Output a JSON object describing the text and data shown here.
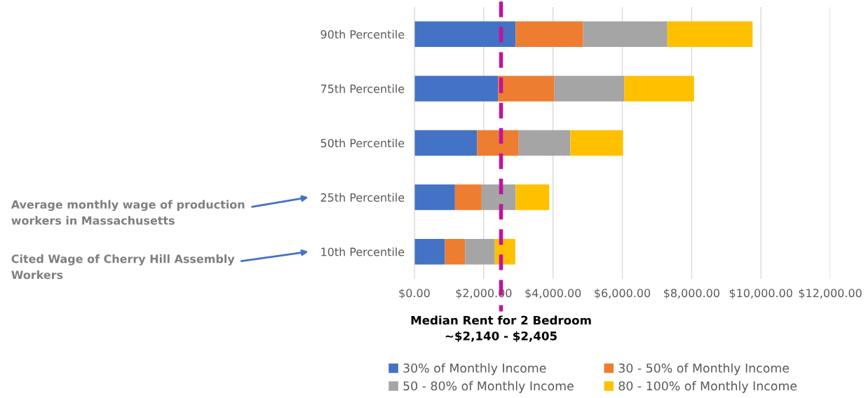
{
  "chart_data": {
    "type": "bar",
    "orientation": "horizontal",
    "stacked": true,
    "categories": [
      "90th Percentile",
      "75th Percentile",
      "50th Percentile",
      "25th Percentile",
      "10th Percentile"
    ],
    "series": [
      {
        "name": "30% of Monthly Income",
        "color": "#4472c4",
        "values": [
          2920,
          2410,
          1810,
          1170,
          880
        ]
      },
      {
        "name": "30 - 50% of Monthly Income",
        "color": "#ed7d31",
        "values": [
          1950,
          1630,
          1200,
          770,
          580
        ]
      },
      {
        "name": "50 - 80% of Monthly Income",
        "color": "#a5a5a5",
        "values": [
          2430,
          2020,
          1490,
          980,
          860
        ]
      },
      {
        "name": "80 - 100% of Monthly Income",
        "color": "#ffc000",
        "values": [
          2460,
          2010,
          1520,
          970,
          590
        ]
      }
    ],
    "xlim": [
      0,
      12000
    ],
    "xticks": [
      {
        "value": 0,
        "label": "$0.00"
      },
      {
        "value": 2000,
        "label": "$2,000.00"
      },
      {
        "value": 4000,
        "label": "$4,000.00"
      },
      {
        "value": 6000,
        "label": "$6,000.00"
      },
      {
        "value": 8000,
        "label": "$8,000.00"
      },
      {
        "value": 10000,
        "label": "$10,000.00"
      },
      {
        "value": 12000,
        "label": "$12,000.00"
      }
    ],
    "ref_lines": [
      {
        "axis": "x",
        "value": 2500,
        "label": "Median Rent for 2 Bedroom\n~$2,140 - $2,405",
        "color": "#c0149c",
        "line_style": "dashed"
      }
    ],
    "annotations": [
      "Average monthly wage of production\nworkers in Massachusetts",
      "Cited Wage of Cherry Hill Assembly\nWorkers"
    ],
    "grid": "x",
    "legend": "bottom"
  }
}
